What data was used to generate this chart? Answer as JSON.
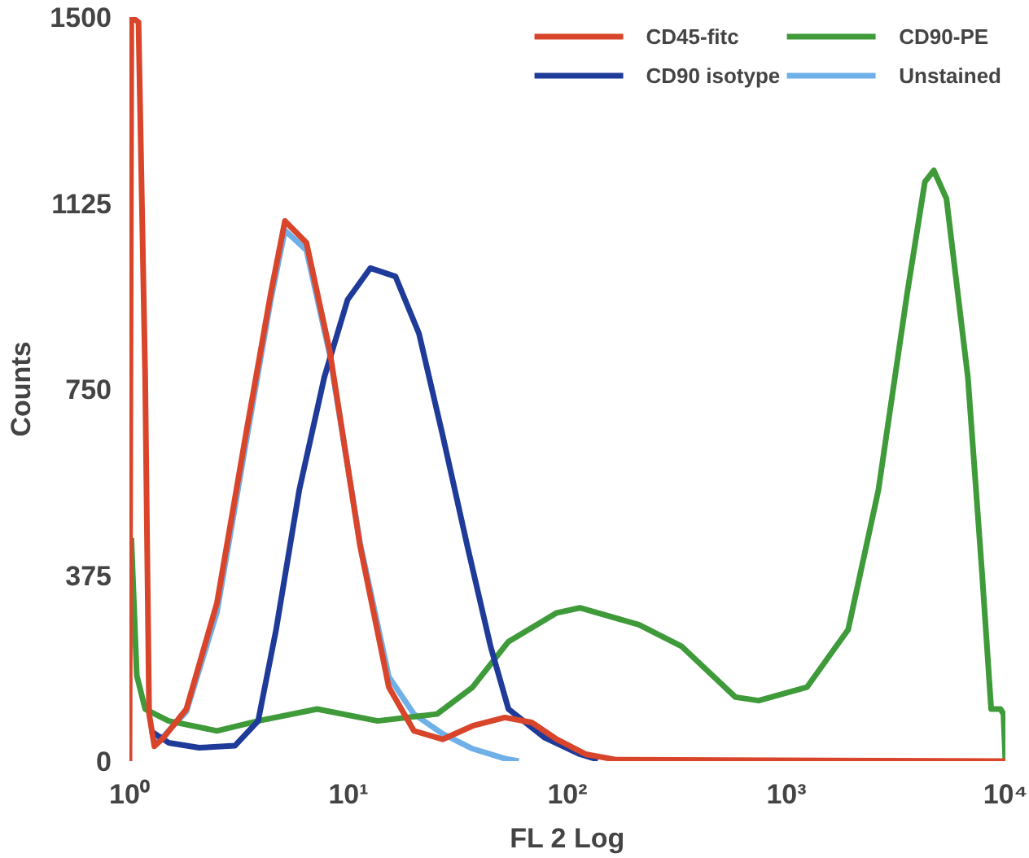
{
  "chart_data": {
    "type": "line",
    "xlabel": "FL 2 Log",
    "ylabel": "Counts",
    "log": "x",
    "xlim": [
      1,
      10000
    ],
    "ylim": [
      0,
      1500
    ],
    "xticks": [
      {
        "value": 1,
        "label": "10⁰"
      },
      {
        "value": 10,
        "label": "10¹"
      },
      {
        "value": 100,
        "label": "10²"
      },
      {
        "value": 1000,
        "label": "10³"
      },
      {
        "value": 10000,
        "label": "10⁴"
      }
    ],
    "yticks": [
      0,
      375,
      750,
      1125,
      1500
    ],
    "grid": false,
    "legend": "top right",
    "marker": "none",
    "line_style": "solid",
    "series": [
      {
        "name": "CD45-fitc",
        "color": "#d9452b",
        "x": [
          1,
          1.02,
          1.1,
          1.18,
          1.23,
          1.3,
          1.43,
          1.82,
          2.51,
          3.4,
          4.42,
          5.13,
          6.43,
          8.21,
          11.3,
          15.3,
          19.9,
          26.9,
          36.9,
          51.8,
          68.7,
          89.4,
          121,
          166,
          10000
        ],
        "values": [
          0,
          1500,
          1490,
          774,
          95,
          30,
          47,
          105,
          319,
          658,
          943,
          1089,
          1045,
          828,
          434,
          149,
          61,
          44,
          71,
          88,
          78,
          44,
          14,
          3,
          0
        ]
      },
      {
        "name": "CD90 isotype",
        "color": "#1f3b9a",
        "x": [
          1.25,
          1.51,
          2.08,
          3.03,
          3.87,
          4.67,
          5.96,
          7.76,
          9.91,
          12.6,
          16.4,
          21,
          26.9,
          34.9,
          44.6,
          53.8,
          78.3,
          114,
          138
        ],
        "values": [
          61,
          37,
          27,
          31,
          81,
          264,
          546,
          774,
          930,
          994,
          977,
          862,
          658,
          434,
          231,
          105,
          48,
          14,
          3
        ]
      },
      {
        "name": "CD90-PE",
        "color": "#3f9a3a",
        "x": [
          1.02,
          1.08,
          1.18,
          1.51,
          2.51,
          3.87,
          7.2,
          13.6,
          25.4,
          36.9,
          53.8,
          89.4,
          114,
          212,
          333,
          585,
          747,
          1241,
          1914,
          2630,
          3560,
          4290,
          4710,
          5380,
          6740,
          7830,
          8610,
          9500,
          9800,
          10000
        ],
        "values": [
          450,
          173,
          105,
          81,
          61,
          81,
          105,
          81,
          95,
          149,
          241,
          299,
          309,
          275,
          231,
          129,
          122,
          149,
          265,
          546,
          943,
          1168,
          1191,
          1134,
          774,
          377,
          105,
          105,
          95,
          0
        ]
      },
      {
        "name": "Unstained",
        "color": "#6fb0e8",
        "x": [
          1.3,
          1.43,
          1.82,
          2.51,
          3.4,
          4.42,
          5.13,
          6.43,
          8.21,
          11.3,
          15.3,
          19.9,
          26.9,
          36.9,
          51.8,
          60
        ],
        "values": [
          40,
          50,
          100,
          300,
          640,
          930,
          1070,
          1030,
          820,
          440,
          170,
          95,
          55,
          25,
          5,
          0
        ]
      }
    ]
  }
}
